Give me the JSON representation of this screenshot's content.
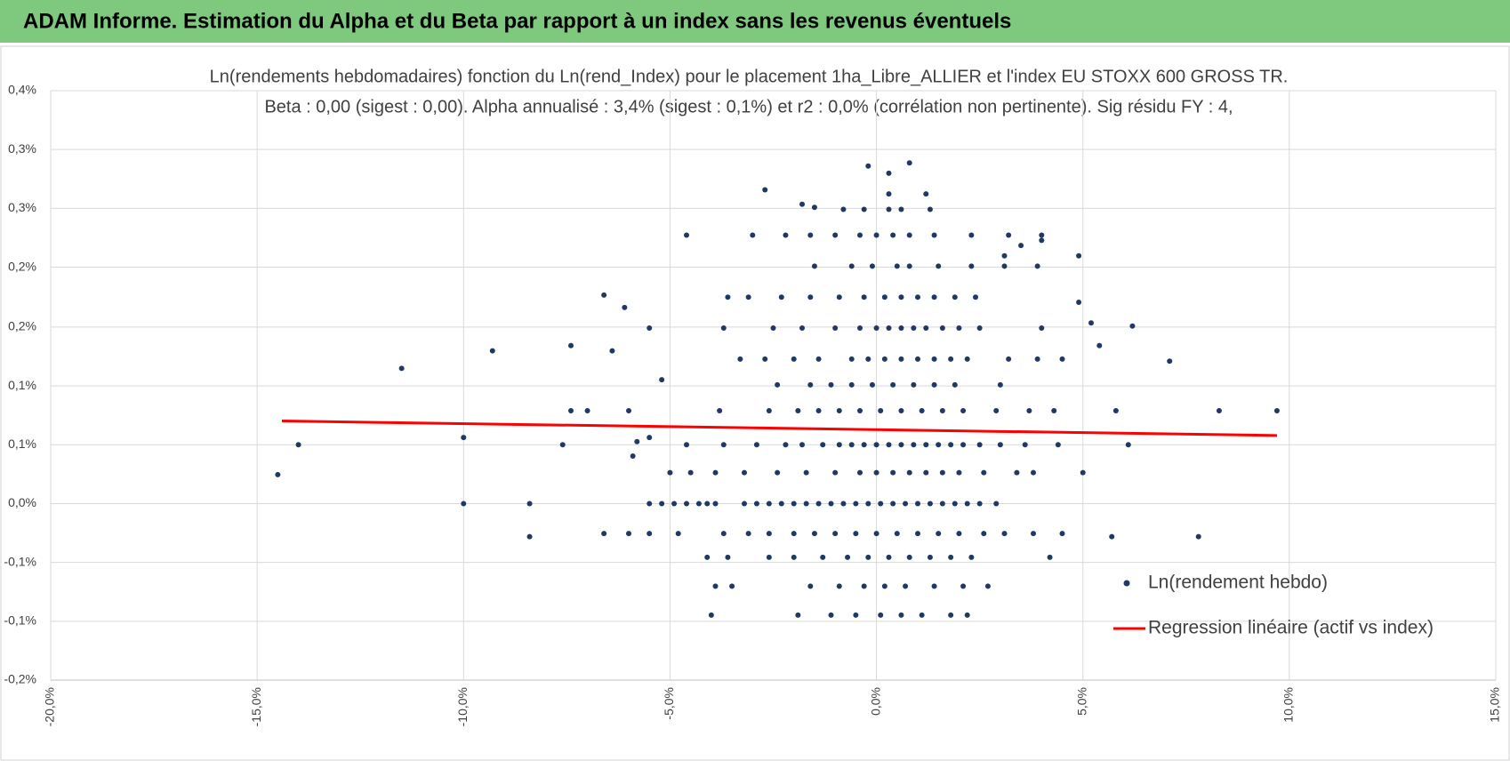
{
  "header": {
    "title": "ADAM Informe. Estimation du Alpha et du Beta par rapport à un index sans les revenus éventuels"
  },
  "chart_data": {
    "type": "scatter",
    "title": "Ln(rendements hebdomadaires) fonction du Ln(rend_Index) pour le placement 1ha_Libre_ALLIER et l'index EU STOXX 600 GROSS TR.",
    "subtitle": "Beta : 0,00 (sigest : 0,00).  Alpha annualisé : 3,4% (sigest : 0,1%) et r2 : 0,0% (corrélation non pertinente). Sig résidu FY : 4,",
    "xlim": [
      -20,
      15
    ],
    "xticks": [
      {
        "value": -20,
        "label": "-20,0%"
      },
      {
        "value": -15,
        "label": "-15,0%"
      },
      {
        "value": -10,
        "label": "-10,0%"
      },
      {
        "value": -5,
        "label": "-5,0%"
      },
      {
        "value": 0,
        "label": "0,0%"
      },
      {
        "value": 5,
        "label": "5,0%"
      },
      {
        "value": 10,
        "label": "10,0%"
      },
      {
        "value": 15,
        "label": "15,0%"
      }
    ],
    "ylim": [
      -0.171,
      0.4
    ],
    "yticks": [
      {
        "value": 0.4,
        "label": "0,4%"
      },
      {
        "value": 0.343,
        "label": "0,3%"
      },
      {
        "value": 0.286,
        "label": "0,3%"
      },
      {
        "value": 0.229,
        "label": "0,2%"
      },
      {
        "value": 0.171,
        "label": "0,2%"
      },
      {
        "value": 0.114,
        "label": "0,1%"
      },
      {
        "value": 0.057,
        "label": "0,1%"
      },
      {
        "value": 0,
        "label": "0,0%"
      },
      {
        "value": -0.057,
        "label": "-0,1%"
      },
      {
        "value": -0.114,
        "label": "-0,1%"
      },
      {
        "value": -0.171,
        "label": "-0,2%"
      }
    ],
    "grid": true,
    "legend": "right",
    "series": [
      {
        "name": "Ln(rendement hebdo)",
        "color": "#203864",
        "type": "scatter",
        "x": [
          -14.5,
          -14.0,
          -11.5,
          -9.3,
          -10.0,
          -10.0,
          -8.4,
          -8.4,
          -7.4,
          -7.6,
          -7.4,
          -7.0,
          -6.6,
          -6.1,
          -6.4,
          -6.0,
          -5.5,
          -5.2,
          -5.8,
          -5.9,
          -5.5,
          9.7,
          8.3,
          7.1,
          6.2,
          5.8,
          5.4,
          5.2,
          4.9,
          4.9,
          4.0,
          3.5,
          3.1,
          7.8,
          5.7,
          6.1,
          -2.7,
          -1.8,
          -1.5,
          -0.2,
          0.3,
          0.3,
          0.8,
          1.2,
          -5.5,
          -5.2,
          -4.9,
          -4.6,
          -4.3,
          -4.1,
          -3.9,
          -3.2,
          -2.9,
          -2.6,
          -2.3,
          -2.0,
          -1.7,
          -1.4,
          -1.1,
          -0.8,
          -0.5,
          -0.2,
          0.1,
          0.4,
          0.7,
          1.0,
          1.3,
          1.6,
          1.9,
          2.2,
          2.5,
          2.9,
          -6.6,
          -6.0,
          -5.5,
          -4.8,
          -3.7,
          -3.1,
          -2.6,
          -2.0,
          -1.5,
          -1.0,
          -0.5,
          0.0,
          0.5,
          1.0,
          1.5,
          2.0,
          2.6,
          3.1,
          3.8,
          4.5,
          -4.1,
          -3.6,
          -2.6,
          -2.0,
          -1.3,
          -0.7,
          -0.2,
          0.3,
          0.8,
          1.3,
          1.8,
          2.3,
          4.2,
          -3.9,
          -3.5,
          -1.6,
          -0.9,
          -0.3,
          0.2,
          0.7,
          1.4,
          2.1,
          2.7,
          -4.0,
          -1.9,
          -1.1,
          -0.5,
          0.1,
          0.6,
          1.1,
          1.8,
          2.2,
          -5.0,
          -4.5,
          -3.9,
          -3.2,
          -2.4,
          -1.7,
          -1.0,
          -0.4,
          0.0,
          0.4,
          0.8,
          1.2,
          1.6,
          2.0,
          2.6,
          3.4,
          3.8,
          5.0,
          -4.6,
          -3.7,
          -2.9,
          -2.2,
          -1.8,
          -1.3,
          -0.9,
          -0.6,
          -0.3,
          0.0,
          0.3,
          0.6,
          0.9,
          1.2,
          1.5,
          1.8,
          2.1,
          2.5,
          3.0,
          3.6,
          4.4,
          -3.8,
          -2.6,
          -1.9,
          -1.4,
          -0.9,
          -0.4,
          0.1,
          0.6,
          1.1,
          1.6,
          2.1,
          2.9,
          3.7,
          4.3,
          -2.4,
          -1.6,
          -1.1,
          -0.6,
          -0.1,
          0.4,
          0.9,
          1.4,
          1.9,
          3.0,
          -3.3,
          -2.7,
          -2.0,
          -1.4,
          -0.6,
          -0.2,
          0.2,
          0.6,
          1.0,
          1.4,
          1.8,
          2.2,
          3.2,
          3.9,
          4.5,
          -3.7,
          -2.5,
          -1.8,
          -1.0,
          -0.4,
          0.0,
          0.3,
          0.6,
          0.9,
          1.2,
          1.6,
          2.0,
          2.5,
          4.0,
          -3.6,
          -3.1,
          -2.3,
          -1.6,
          -0.9,
          -0.3,
          0.2,
          0.6,
          1.0,
          1.4,
          1.9,
          2.4,
          -1.5,
          -0.6,
          -0.1,
          0.5,
          0.8,
          1.5,
          2.3,
          3.1,
          3.9,
          -4.6,
          -3.0,
          -2.2,
          -1.6,
          -1.0,
          -0.4,
          0.0,
          0.4,
          0.8,
          1.4,
          2.3,
          3.2,
          4.0,
          -0.8,
          -0.3,
          0.3,
          0.6,
          1.3
        ],
        "values": [
          0.028,
          0.057,
          0.131,
          0.148,
          0.064,
          0.0,
          0.0,
          -0.032,
          0.153,
          0.057,
          0.09,
          0.09,
          0.202,
          0.19,
          0.148,
          0.09,
          0.17,
          0.12,
          0.06,
          0.046,
          0.064,
          0.09,
          0.09,
          0.138,
          0.172,
          0.09,
          0.153,
          0.175,
          0.195,
          0.24,
          0.255,
          0.25,
          0.24,
          -0.032,
          -0.032,
          0.057,
          0.304,
          0.29,
          0.287,
          0.327,
          0.3,
          0.32,
          0.33,
          0.3,
          0,
          0,
          0,
          0,
          0,
          0,
          0,
          0,
          0,
          0,
          0,
          0,
          0,
          0,
          0,
          0,
          0,
          0,
          0,
          0,
          0,
          0,
          0,
          0,
          0,
          0,
          0,
          0,
          -0.029,
          -0.029,
          -0.029,
          -0.029,
          -0.029,
          -0.029,
          -0.029,
          -0.029,
          -0.029,
          -0.029,
          -0.029,
          -0.029,
          -0.029,
          -0.029,
          -0.029,
          -0.029,
          -0.029,
          -0.029,
          -0.029,
          -0.029,
          -0.052,
          -0.052,
          -0.052,
          -0.052,
          -0.052,
          -0.052,
          -0.052,
          -0.052,
          -0.052,
          -0.052,
          -0.052,
          -0.052,
          -0.052,
          -0.08,
          -0.08,
          -0.08,
          -0.08,
          -0.08,
          -0.08,
          -0.08,
          -0.08,
          -0.08,
          -0.08,
          -0.108,
          -0.108,
          -0.108,
          -0.108,
          -0.108,
          -0.108,
          -0.108,
          -0.108,
          -0.108,
          0.03,
          0.03,
          0.03,
          0.03,
          0.03,
          0.03,
          0.03,
          0.03,
          0.03,
          0.03,
          0.03,
          0.03,
          0.03,
          0.03,
          0.03,
          0.03,
          0.03,
          0.03,
          0.057,
          0.057,
          0.057,
          0.057,
          0.057,
          0.057,
          0.057,
          0.057,
          0.057,
          0.057,
          0.057,
          0.057,
          0.057,
          0.057,
          0.057,
          0.057,
          0.057,
          0.057,
          0.057,
          0.057,
          0.057,
          0.09,
          0.09,
          0.09,
          0.09,
          0.09,
          0.09,
          0.09,
          0.09,
          0.09,
          0.09,
          0.09,
          0.09,
          0.09,
          0.09,
          0.115,
          0.115,
          0.115,
          0.115,
          0.115,
          0.115,
          0.115,
          0.115,
          0.115,
          0.115,
          0.14,
          0.14,
          0.14,
          0.14,
          0.14,
          0.14,
          0.14,
          0.14,
          0.14,
          0.14,
          0.14,
          0.14,
          0.14,
          0.14,
          0.14,
          0.17,
          0.17,
          0.17,
          0.17,
          0.17,
          0.17,
          0.17,
          0.17,
          0.17,
          0.17,
          0.17,
          0.17,
          0.17,
          0.17,
          0.2,
          0.2,
          0.2,
          0.2,
          0.2,
          0.2,
          0.2,
          0.2,
          0.2,
          0.2,
          0.2,
          0.2,
          0.23,
          0.23,
          0.23,
          0.23,
          0.23,
          0.23,
          0.23,
          0.23,
          0.23,
          0.26,
          0.26,
          0.26,
          0.26,
          0.26,
          0.26,
          0.26,
          0.26,
          0.26,
          0.26,
          0.26,
          0.26,
          0.26,
          0.285,
          0.285,
          0.285,
          0.285,
          0.285
        ]
      },
      {
        "name": "Regression linéaire (actif vs index)",
        "color": "#ff0000",
        "type": "line",
        "x": [
          -14.4,
          9.7
        ],
        "values": [
          0.08,
          0.066
        ]
      }
    ]
  }
}
